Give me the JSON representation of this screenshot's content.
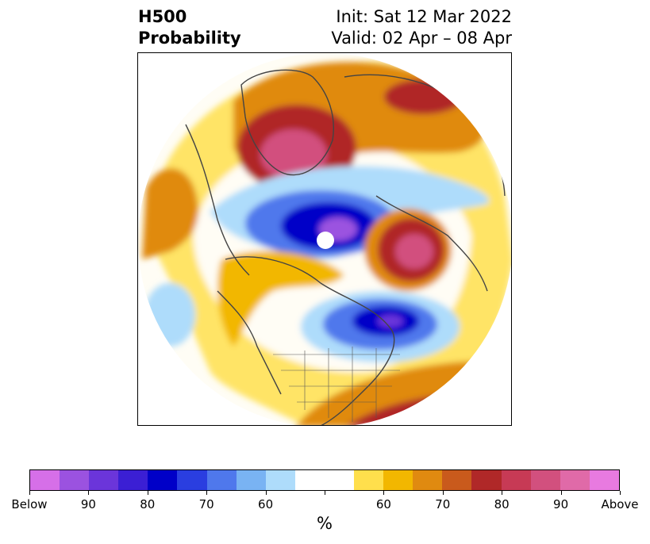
{
  "title": {
    "left_line1": "H500",
    "left_line2": "Probability",
    "right_line1": "Init: Sat 12 Mar 2022",
    "right_line2": "Valid: 02 Apr – 08 Apr"
  },
  "colorbar": {
    "unit": "%",
    "colors": [
      "#d66fe8",
      "#9b52e0",
      "#6b35da",
      "#3b1fd4",
      "#0000c8",
      "#2a3ee0",
      "#4f78ec",
      "#79b3f3",
      "#aedcfb",
      "#ffffff",
      "#ffffff",
      "#ffdf4c",
      "#f2b700",
      "#e08a10",
      "#c95a1c",
      "#b02828",
      "#c73a55",
      "#d2507e",
      "#e06aa8",
      "#e87ae0"
    ],
    "labels": [
      "Below",
      "90",
      "80",
      "70",
      "60",
      "",
      "60",
      "70",
      "80",
      "90",
      "Above"
    ]
  },
  "map": {
    "anomalies": [
      {
        "name": "greenland-high",
        "type": "above",
        "level": "90"
      },
      {
        "name": "north-atlantic-low",
        "type": "below",
        "level": "90"
      },
      {
        "name": "scandinavia-high",
        "type": "above",
        "level": "90"
      },
      {
        "name": "canada-low",
        "type": "below",
        "level": "90"
      },
      {
        "name": "southeast-us-high",
        "type": "above",
        "level": "80"
      }
    ]
  }
}
